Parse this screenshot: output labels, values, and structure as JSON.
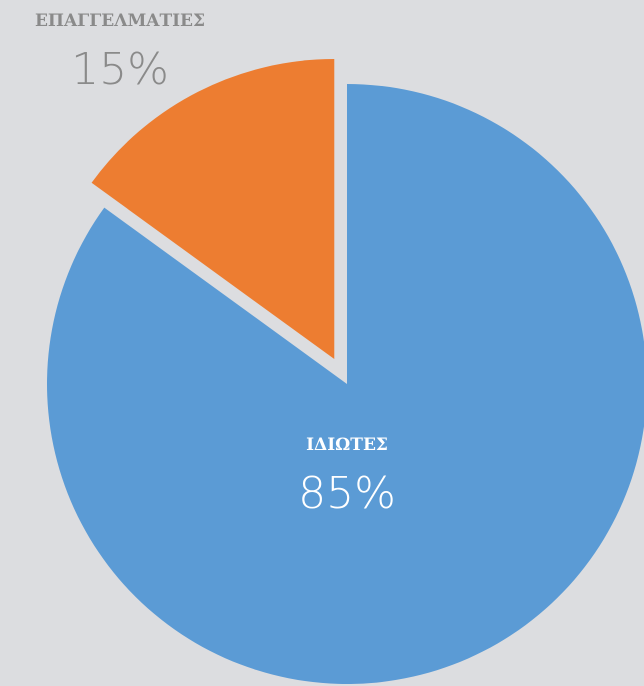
{
  "chart_data": {
    "type": "pie",
    "categories": [
      "ΙΔΙΩΤΕΣ",
      "ΕΠΑΓΓΕΛΜΑΤΙΕΣ"
    ],
    "values": [
      85,
      15
    ],
    "value_labels": [
      "85%",
      "15%"
    ],
    "colors": [
      "#5b9bd5",
      "#ed7d31"
    ],
    "exploded": [
      false,
      true
    ]
  }
}
